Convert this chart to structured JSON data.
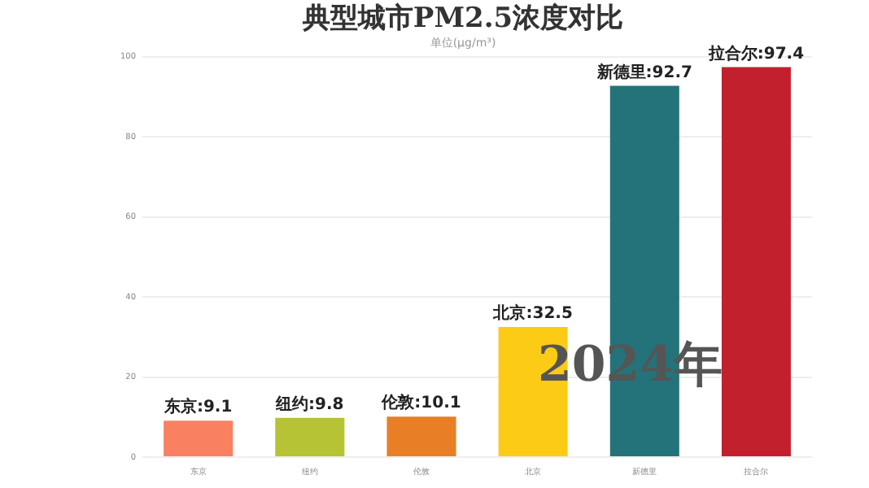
{
  "chart_data": {
    "type": "bar",
    "title": "典型城市PM2.5浓度对比",
    "subtitle": "单位(μg/m³)",
    "categories": [
      "东京",
      "纽约",
      "伦敦",
      "北京",
      "新德里",
      "拉合尔"
    ],
    "values": [
      9.1,
      9.8,
      10.1,
      32.5,
      92.7,
      97.4
    ],
    "colors": [
      "#f98060",
      "#b5c334",
      "#e87f26",
      "#fccb15",
      "#24737a",
      "#c3202d"
    ],
    "value_labels": [
      "东京:9.1",
      "纽约:9.8",
      "伦敦:10.1",
      "北京:32.5",
      "新德里:92.7",
      "拉合尔:97.4"
    ],
    "ylim": [
      0,
      100
    ],
    "yticks": [
      0,
      20,
      40,
      60,
      80,
      100
    ],
    "grid": "y",
    "legend": false,
    "annotations": [
      "2024年"
    ]
  }
}
